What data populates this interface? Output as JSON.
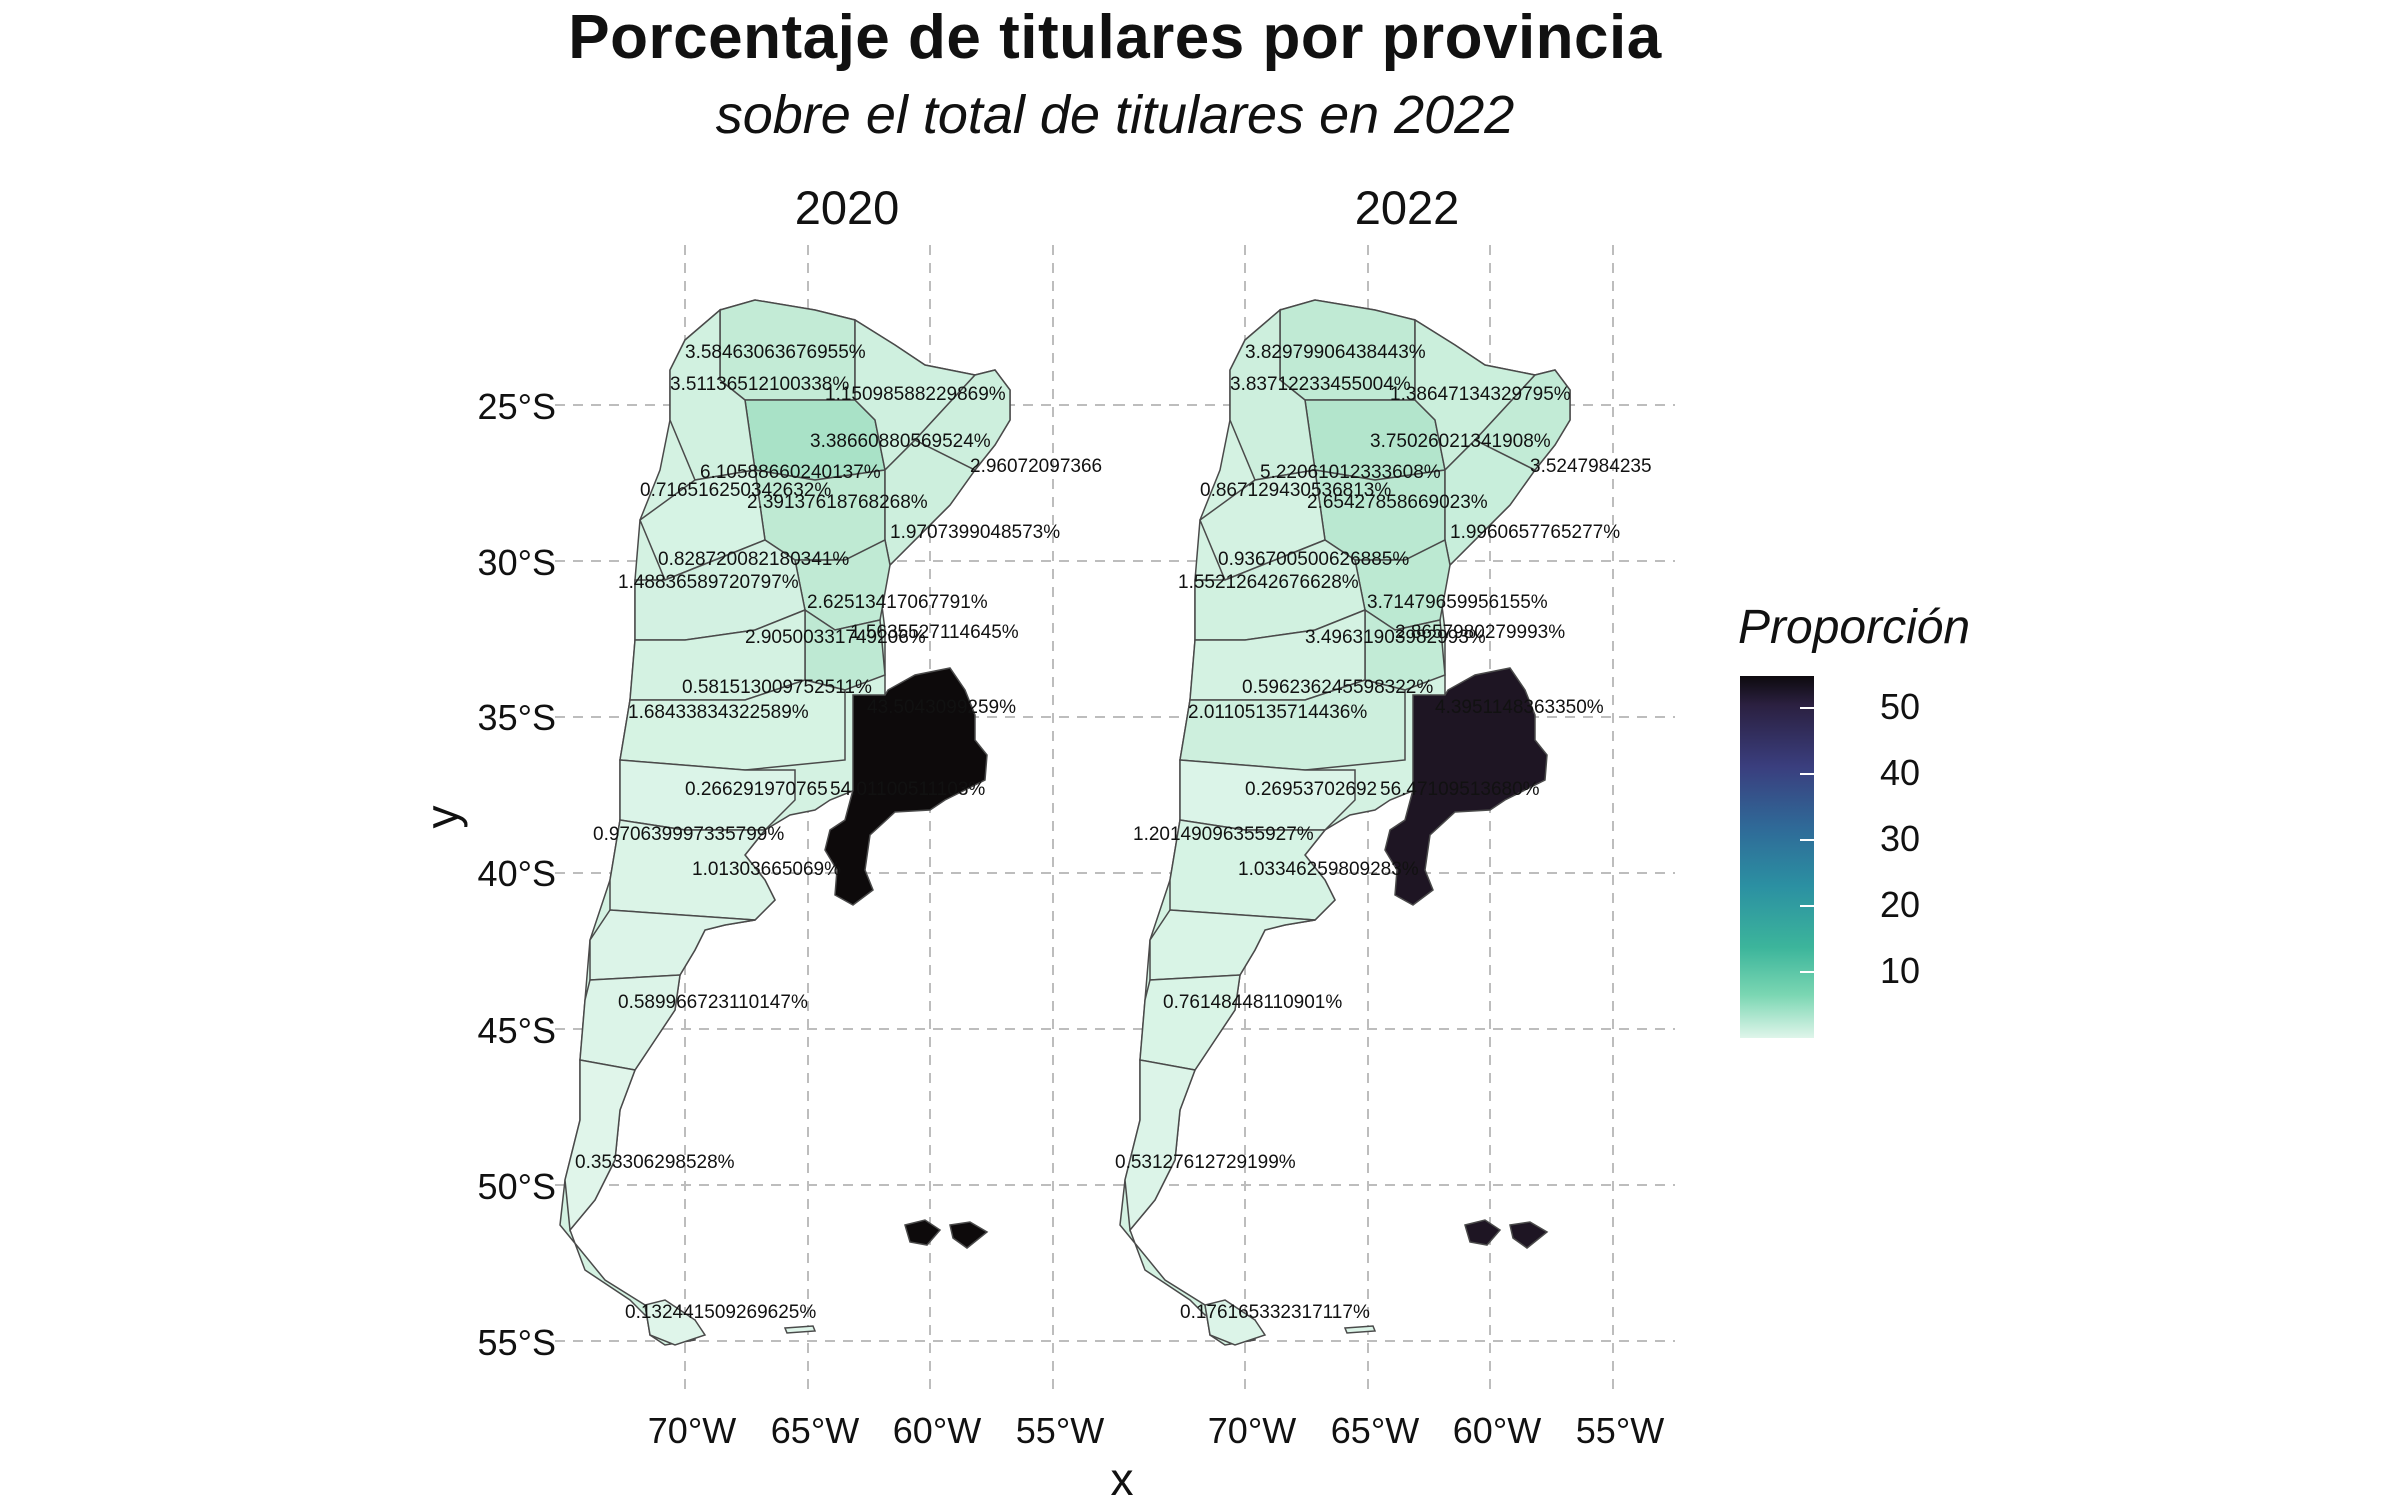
{
  "title": "Porcentaje de titulares por provincia",
  "subtitle": "sobre el total de titulares en 2022",
  "facets": [
    "2020",
    "2022"
  ],
  "axes": {
    "x_label": "x",
    "y_label": "y",
    "y_ticks": [
      "25°S",
      "30°S",
      "35°S",
      "40°S",
      "45°S",
      "50°S",
      "55°S"
    ],
    "x_ticks": [
      "70°W",
      "65°W",
      "60°W",
      "55°W"
    ]
  },
  "legend": {
    "title": "Proporción",
    "ticks": [
      "50",
      "40",
      "30",
      "20",
      "10"
    ],
    "scale_min": 0,
    "scale_max": 55,
    "colors": [
      "#dff5ea",
      "#7ad6b2",
      "#3cb59b",
      "#2b90a2",
      "#2f6a98",
      "#3a3e7e",
      "#2b2040",
      "#0d0a0e"
    ]
  },
  "labels_2020": [
    "3.58463063676955%",
    "3.51136512100338%",
    "1.15098588229869%",
    "3.38660880569524%",
    "6.10588660240137%",
    "2.96072097366",
    "0.716516250342632%",
    "2.39137618768268%",
    "1.9707399048573%",
    "0.828720082180341%",
    "1.48836589720797%",
    "2.62513417067791%",
    "1.5635527114645%",
    "2.90500331749206%",
    "0.581513009752511%",
    "1.68433834322589%",
    "43.5043099259%",
    "0.266291970765",
    "54.01100511103%",
    "0.970639997335799%",
    "1.01303665069%",
    "0.589966723110147%",
    "0.353306298528%",
    "0.132441509269625%"
  ],
  "labels_2022": [
    "3.82979906438443%",
    "3.83712233455004%",
    "1.38647134329795%",
    "3.75026021341908%",
    "5.22061012333608%",
    "3.5247984235",
    "0.867129430536813%",
    "2.65427858669023%",
    "1.9960657765277%",
    "0.936700500626885%",
    "1.55212642676628%",
    "3.71479659956155%",
    "2.8657980279993%",
    "3.49631903982993%",
    "0.596236245598322%",
    "2.01105135714436%",
    "4.3951148363350%",
    "0.26953702692",
    "56.47109513680%",
    "1.20149096355927%",
    "1.03346259809283%",
    "0.76148448110901%",
    "0.53127612729199%",
    "0.176165332317117%"
  ]
}
